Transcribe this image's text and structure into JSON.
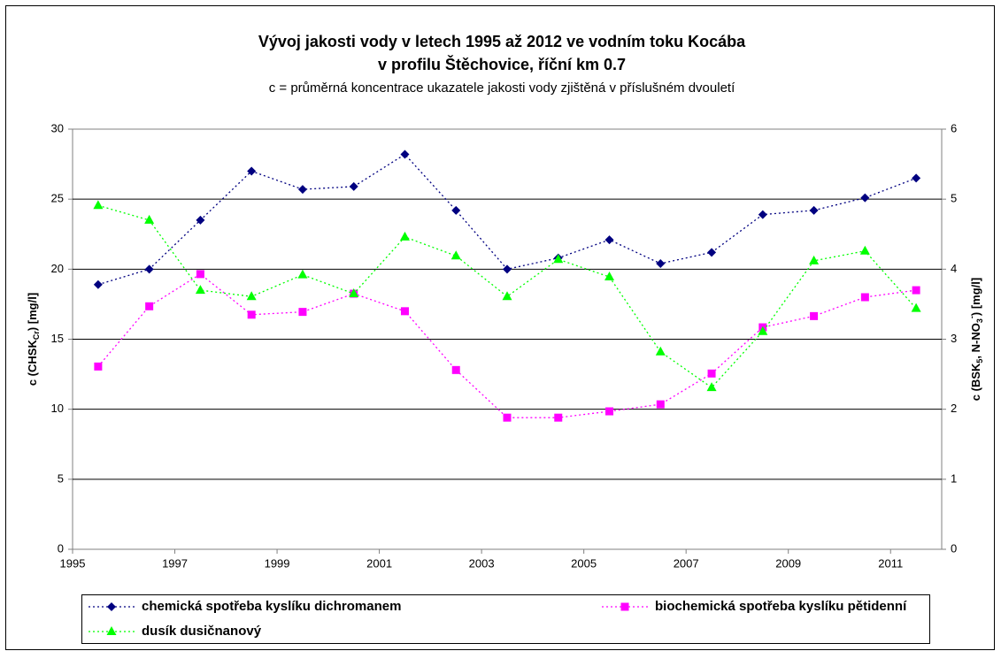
{
  "chart_data": {
    "type": "line",
    "title": [
      "Vývoj jakosti vody v letech 1995 až 2012 ve vodním toku Kocába",
      "v profilu Štěchovice, říční km 0.7"
    ],
    "subtitle": "c = průměrná koncentrace ukazatele jakosti vody zjištěná v příslušném dvouletí",
    "ylabel": [
      {
        "text": "c (CHSK"
      },
      {
        "text": "Cr",
        "shift": "sub"
      },
      {
        "text": ") [mg/l]"
      }
    ],
    "y2label": [
      {
        "text": "c (BSK"
      },
      {
        "text": "5",
        "shift": "sub"
      },
      {
        "text": ", N-NO"
      },
      {
        "text": "3",
        "shift": "sub"
      },
      {
        "text": "-",
        "shift": "super"
      },
      {
        "text": ") [mg/l]"
      }
    ],
    "x": [
      1995.5,
      1996.5,
      1997.5,
      1998.5,
      1999.5,
      2000.5,
      2001.5,
      2002.5,
      2003.5,
      2004.5,
      2005.5,
      2006.5,
      2007.5,
      2008.5,
      2009.5,
      2010.5,
      2011.5
    ],
    "xlim": [
      1995,
      2012
    ],
    "xticks": [
      1995,
      1997,
      1999,
      2001,
      2003,
      2005,
      2007,
      2009,
      2011
    ],
    "ylim": [
      0,
      30
    ],
    "yticks": [
      0,
      5,
      10,
      15,
      20,
      25,
      30
    ],
    "y2lim": [
      0,
      6
    ],
    "y2ticks": [
      0,
      1,
      2,
      3,
      4,
      5,
      6
    ],
    "grid": true,
    "legend": "bottom",
    "series": [
      {
        "name": "chemická spotřeba kyslíku dichromanem",
        "color": "#000080",
        "marker": "diamond",
        "values": [
          18.9,
          20.0,
          23.5,
          27.0,
          25.7,
          25.9,
          28.2,
          24.2,
          20.0,
          20.8,
          22.1,
          20.4,
          21.2,
          23.9,
          24.2,
          25.1,
          26.5
        ]
      },
      {
        "name": "biochemická spotřeba kyslíku pětidenní",
        "color": "#ff00ff",
        "marker": "square",
        "axis": "y2",
        "values": [
          2.61,
          3.47,
          3.93,
          3.35,
          3.39,
          3.65,
          3.4,
          2.56,
          1.88,
          1.88,
          1.97,
          2.07,
          2.51,
          3.17,
          3.33,
          3.6,
          3.7
        ]
      },
      {
        "name": "dusík dusičnanový",
        "color": "#00ff00",
        "marker": "triangle",
        "axis": "y2",
        "values": [
          4.91,
          4.7,
          3.7,
          3.61,
          3.92,
          3.65,
          4.46,
          4.19,
          3.61,
          4.14,
          3.89,
          2.82,
          2.31,
          3.11,
          4.12,
          4.26,
          3.44
        ]
      }
    ]
  }
}
